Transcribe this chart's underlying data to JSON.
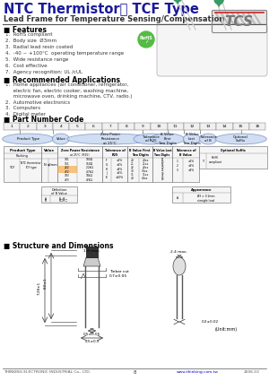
{
  "title": "NTC Thermistor： TCF Type",
  "subtitle": "Lead Frame for Temperature Sensing/Compensation",
  "bg_color": "#ffffff",
  "features_title": "■ Features",
  "features": [
    "1.  RoHS compliant",
    "2.  Body size  Ø3mm",
    "3.  Radial lead resin coated",
    "4.  -40 ~ +100°C  operating temperature range",
    "5.  Wide resistance range",
    "6.  Cost effective",
    "7.  Agency recognition: UL /cUL"
  ],
  "applications_title": "■ Recommended Applications",
  "applications": [
    "1.  Home appliances (air conditioner, refrigerator,",
    "     electric fan, electric cooker, washing machine,",
    "     microwave oven, drinking machine, CTV, radio.)",
    "2.  Automotive electronics",
    "3.  Computers",
    "4.  Digital meter"
  ],
  "part_number_title": "■ Part Number Code",
  "structure_title": "■ Structure and Dimensions",
  "footer_company": "THINKING ELECTRONIC INDUSTRIAL Co., LTD.",
  "footer_page": "8",
  "footer_website": "www.thinking.com.tw",
  "footer_date": "2006.03"
}
